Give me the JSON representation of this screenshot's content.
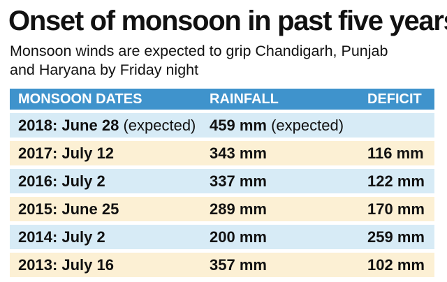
{
  "title": "Onset of monsoon in past five years",
  "subtitle_line1": "Monsoon winds are expected to grip Chandigarh, Punjab",
  "subtitle_line2": "and Haryana by Friday night",
  "colors": {
    "header_bg": "#3f93cc",
    "row_blue": "#d7ebf6",
    "row_cream": "#fcf0d4"
  },
  "chart_data": {
    "type": "table",
    "title": "Onset of monsoon in past five years",
    "subtitle": "Monsoon winds are expected to grip Chandigarh, Punjab and Haryana by Friday night",
    "columns": [
      "MONSOON DATES",
      "RAINFALL",
      "DEFICIT"
    ],
    "rows": [
      {
        "date": "2018: June 28",
        "date_note": "(expected)",
        "rainfall": "459 mm",
        "rainfall_note": "(expected)",
        "deficit": ""
      },
      {
        "date": "2017: July 12",
        "date_note": "",
        "rainfall": "343 mm",
        "rainfall_note": "",
        "deficit": "116 mm"
      },
      {
        "date": "2016: July 2",
        "date_note": "",
        "rainfall": "337 mm",
        "rainfall_note": "",
        "deficit": "122 mm"
      },
      {
        "date": "2015: June 25",
        "date_note": "",
        "rainfall": "289 mm",
        "rainfall_note": "",
        "deficit": "170 mm"
      },
      {
        "date": "2014: July 2",
        "date_note": "",
        "rainfall": "200 mm",
        "rainfall_note": "",
        "deficit": "259 mm"
      },
      {
        "date": "2013: July 16",
        "date_note": "",
        "rainfall": "357 mm",
        "rainfall_note": "",
        "deficit": "102 mm"
      }
    ]
  }
}
